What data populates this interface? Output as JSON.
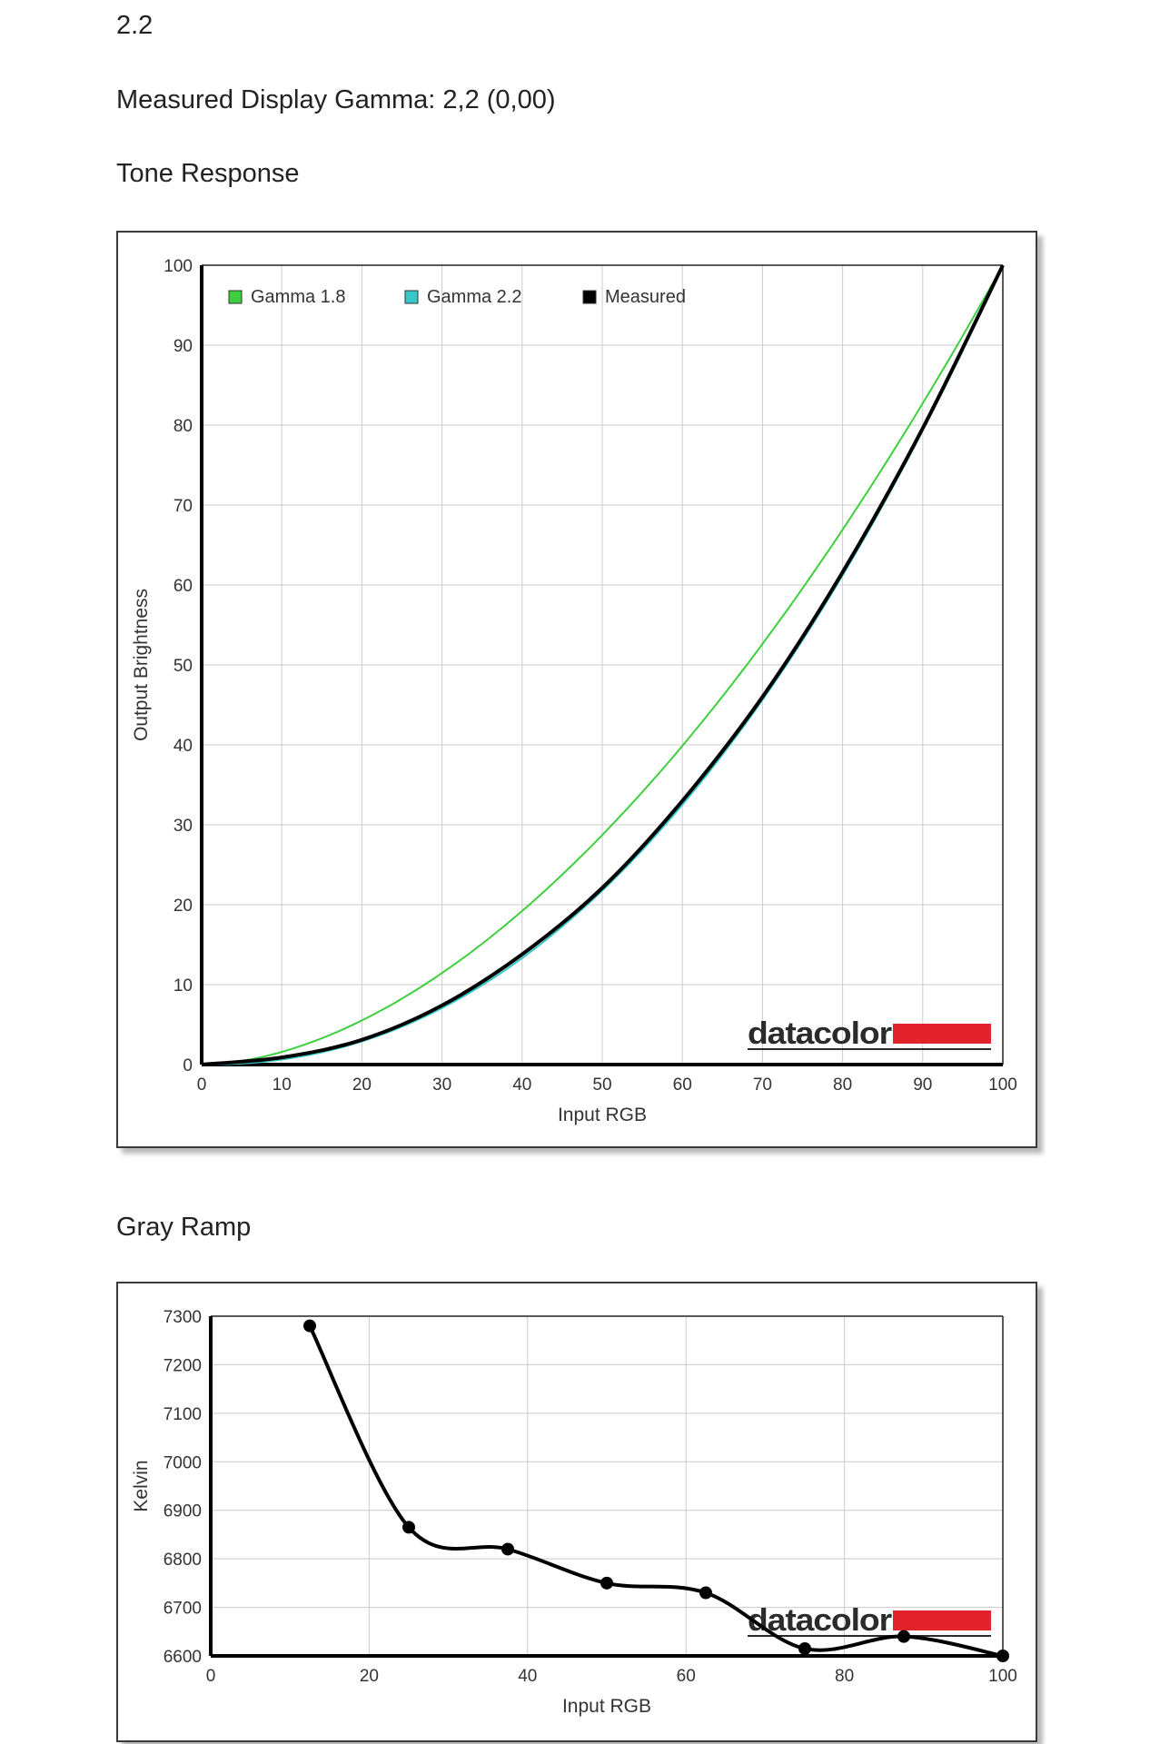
{
  "page": {
    "version_label": "2.2",
    "gamma_measured_text": "Measured Display Gamma: 2,2 (0,00)",
    "tone_section_title": "Tone Response",
    "gray_section_title": "Gray Ramp"
  },
  "colors": {
    "gamma18": "#3ecf3e",
    "gamma22": "#35c8c8",
    "measured": "#000000",
    "grid": "#cccccc",
    "brand_red": "#e3232c"
  },
  "logo_text": "datacolor",
  "chart_data": [
    {
      "type": "line",
      "title": "Tone Response",
      "xlabel": "Input RGB",
      "ylabel": "Output Brightness",
      "xlim": [
        0,
        100
      ],
      "ylim": [
        0,
        100
      ],
      "x_ticks": [
        0,
        10,
        20,
        30,
        40,
        50,
        60,
        70,
        80,
        90,
        100
      ],
      "y_ticks": [
        0,
        10,
        20,
        30,
        40,
        50,
        60,
        70,
        80,
        90,
        100
      ],
      "grid": true,
      "legend_position": "top-left",
      "series": [
        {
          "name": "Gamma 1.8",
          "color": "#3ecf3e",
          "gamma": 1.8,
          "points": [
            [
              0,
              0
            ],
            [
              10,
              1.6
            ],
            [
              20,
              5.5
            ],
            [
              30,
              11.5
            ],
            [
              40,
              19.2
            ],
            [
              50,
              28.7
            ],
            [
              60,
              39.9
            ],
            [
              70,
              52.6
            ],
            [
              80,
              66.9
            ],
            [
              90,
              82.7
            ],
            [
              100,
              100
            ]
          ]
        },
        {
          "name": "Gamma 2.2",
          "color": "#35c8c8",
          "gamma": 2.2,
          "points": [
            [
              0,
              0
            ],
            [
              10,
              0.6
            ],
            [
              20,
              2.9
            ],
            [
              30,
              7.1
            ],
            [
              40,
              13.3
            ],
            [
              50,
              21.8
            ],
            [
              60,
              32.5
            ],
            [
              70,
              45.6
            ],
            [
              80,
              61.2
            ],
            [
              90,
              79.3
            ],
            [
              100,
              100
            ]
          ]
        },
        {
          "name": "Measured",
          "color": "#000000",
          "points": [
            [
              0,
              0
            ],
            [
              10,
              0.9
            ],
            [
              20,
              3.1
            ],
            [
              30,
              7.4
            ],
            [
              40,
              13.8
            ],
            [
              50,
              22.1
            ],
            [
              60,
              33.0
            ],
            [
              70,
              46.0
            ],
            [
              80,
              61.6
            ],
            [
              90,
              79.6
            ],
            [
              100,
              100
            ]
          ]
        }
      ]
    },
    {
      "type": "line",
      "title": "Gray Ramp",
      "xlabel": "Input RGB",
      "ylabel": "Kelvin",
      "xlim": [
        0,
        100
      ],
      "ylim": [
        6600,
        7300
      ],
      "x_ticks": [
        0,
        20,
        40,
        60,
        80,
        100
      ],
      "y_ticks": [
        6600,
        6700,
        6800,
        6900,
        7000,
        7100,
        7200,
        7300
      ],
      "grid": true,
      "series": [
        {
          "color": "#000000",
          "x": [
            12.5,
            25,
            37.5,
            50,
            62.5,
            75,
            87.5,
            100
          ],
          "values": [
            7280,
            6865,
            6820,
            6750,
            6730,
            6615,
            6640,
            6600
          ]
        }
      ]
    }
  ]
}
